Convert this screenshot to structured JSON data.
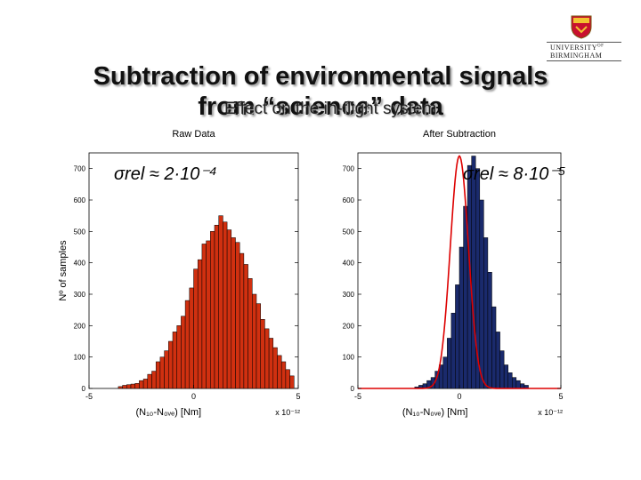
{
  "title": {
    "line1": "Subtraction of environmental signals",
    "line2": "from “science” data",
    "overlay": "Effect on the in-flight system"
  },
  "logo": {
    "line1": "UNIVERSITY",
    "line1_sup": "OF",
    "line2": "BIRMINGHAM"
  },
  "chart_data": [
    {
      "type": "bar",
      "title": "Raw Data",
      "xlabel": "(N₁₀-N₀ᵥₑ) [Nm]",
      "x_multiplier": "x 10⁻¹²",
      "ylabel": "Nº of samples",
      "annotation": "σrel ≈ 2·10⁻⁴",
      "xlim": [
        -5,
        5
      ],
      "ylim": [
        0,
        750
      ],
      "xticks": [
        -5,
        0,
        5
      ],
      "yticks": [
        0,
        100,
        200,
        300,
        400,
        500,
        600,
        700
      ],
      "bar_color": "#d03010",
      "bin_start": -3.6,
      "bin_width": 0.2,
      "values": [
        6,
        10,
        12,
        14,
        16,
        25,
        30,
        45,
        55,
        85,
        100,
        120,
        150,
        180,
        200,
        230,
        280,
        320,
        380,
        410,
        460,
        470,
        500,
        520,
        550,
        530,
        505,
        480,
        465,
        430,
        395,
        350,
        300,
        270,
        220,
        190,
        160,
        130,
        105,
        85,
        60,
        40
      ]
    },
    {
      "type": "bar",
      "title": "After Subtraction",
      "xlabel": "(N₁₀-N₀ᵥₑ) [Nm]",
      "x_multiplier": "x 10⁻¹²",
      "annotation": "σrel ≈ 8·10⁻⁵",
      "xlim": [
        -5,
        5
      ],
      "ylim": [
        0,
        750
      ],
      "xticks": [
        -5,
        0,
        5
      ],
      "yticks": [
        0,
        100,
        200,
        300,
        400,
        500,
        600,
        700
      ],
      "bar_color": "#1a2a6c",
      "fit_color": "#dd0000",
      "fit": {
        "type": "gaussian",
        "mean": 0,
        "sigma": 0.45,
        "amplitude": 740
      },
      "bin_start": -2.2,
      "bin_width": 0.2,
      "values": [
        5,
        10,
        15,
        25,
        35,
        55,
        75,
        100,
        160,
        240,
        330,
        450,
        580,
        710,
        740,
        700,
        600,
        480,
        370,
        260,
        180,
        120,
        75,
        50,
        35,
        25,
        15,
        10
      ]
    }
  ]
}
